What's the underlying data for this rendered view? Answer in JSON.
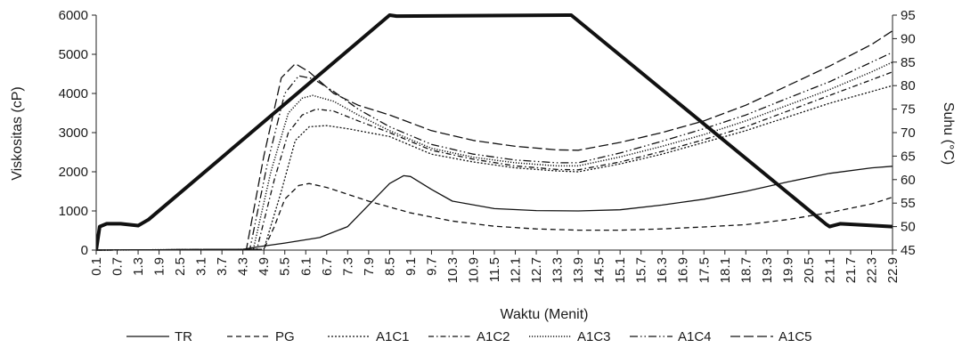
{
  "chart_data": {
    "type": "line",
    "xlabel": "Waktu (Menit)",
    "ylabel": "Viskositas (cP)",
    "y2label": "Suhu (°C)",
    "ylim": [
      0,
      6000
    ],
    "y2lim": [
      45,
      95
    ],
    "yticks": [
      "0",
      "1000",
      "2000",
      "3000",
      "4000",
      "5000",
      "6000"
    ],
    "y2ticks": [
      "45",
      "50",
      "55",
      "60",
      "65",
      "70",
      "75",
      "80",
      "85",
      "90",
      "95"
    ],
    "xticks": [
      "0.1",
      "0.7",
      "1.3",
      "1.9",
      "2.5",
      "3.1",
      "3.7",
      "4.3",
      "4.9",
      "5.5",
      "6.1",
      "6.7",
      "7.3",
      "7.9",
      "8.5",
      "9.1",
      "9.7",
      "10.3",
      "10.9",
      "11.5",
      "12.1",
      "12.7",
      "13.3",
      "13.9",
      "14.5",
      "15.1",
      "15.7",
      "16.3",
      "16.9",
      "17.5",
      "18.1",
      "18.7",
      "19.3",
      "19.9",
      "20.5",
      "21.1",
      "21.7",
      "22.3",
      "22.9"
    ],
    "xlim": [
      0.1,
      22.9
    ],
    "grid": false,
    "legend_position": "bottom",
    "series": [
      {
        "name": "TR",
        "axis": "left",
        "dash": "solid",
        "width": 1.3,
        "points": [
          [
            0.1,
            0
          ],
          [
            4.3,
            20
          ],
          [
            4.7,
            80
          ],
          [
            5.5,
            180
          ],
          [
            6.5,
            320
          ],
          [
            7.3,
            600
          ],
          [
            7.9,
            1150
          ],
          [
            8.5,
            1700
          ],
          [
            8.9,
            1900
          ],
          [
            9.1,
            1880
          ],
          [
            9.7,
            1550
          ],
          [
            10.3,
            1250
          ],
          [
            11.5,
            1060
          ],
          [
            12.7,
            1010
          ],
          [
            13.9,
            1000
          ],
          [
            15.1,
            1030
          ],
          [
            16.3,
            1150
          ],
          [
            17.5,
            1300
          ],
          [
            18.7,
            1500
          ],
          [
            19.9,
            1740
          ],
          [
            21.1,
            1960
          ],
          [
            22.3,
            2100
          ],
          [
            22.9,
            2140
          ]
        ]
      },
      {
        "name": "PG",
        "axis": "left",
        "dash": "6,4",
        "width": 1.3,
        "points": [
          [
            0.1,
            0
          ],
          [
            4.9,
            20
          ],
          [
            5.2,
            600
          ],
          [
            5.5,
            1300
          ],
          [
            5.9,
            1650
          ],
          [
            6.2,
            1700
          ],
          [
            6.7,
            1600
          ],
          [
            7.9,
            1250
          ],
          [
            9.1,
            950
          ],
          [
            10.3,
            740
          ],
          [
            11.5,
            610
          ],
          [
            12.7,
            540
          ],
          [
            13.9,
            510
          ],
          [
            15.1,
            510
          ],
          [
            16.3,
            540
          ],
          [
            17.5,
            590
          ],
          [
            18.7,
            650
          ],
          [
            19.9,
            780
          ],
          [
            21.1,
            960
          ],
          [
            22.3,
            1180
          ],
          [
            22.9,
            1350
          ]
        ]
      },
      {
        "name": "A1C1",
        "axis": "left",
        "dash": "2,2",
        "width": 1.3,
        "points": [
          [
            0.1,
            0
          ],
          [
            4.9,
            20
          ],
          [
            5.4,
            1500
          ],
          [
            5.8,
            2800
          ],
          [
            6.2,
            3150
          ],
          [
            6.7,
            3180
          ],
          [
            7.3,
            3100
          ],
          [
            8.5,
            2900
          ],
          [
            9.7,
            2450
          ],
          [
            10.9,
            2250
          ],
          [
            12.1,
            2100
          ],
          [
            13.3,
            2020
          ],
          [
            13.9,
            2000
          ],
          [
            15.1,
            2200
          ],
          [
            16.3,
            2450
          ],
          [
            17.5,
            2750
          ],
          [
            18.7,
            3050
          ],
          [
            19.9,
            3400
          ],
          [
            21.1,
            3750
          ],
          [
            22.3,
            4050
          ],
          [
            22.9,
            4200
          ]
        ]
      },
      {
        "name": "A1C2",
        "axis": "left",
        "dash": "6,3,1.5,3",
        "width": 1.3,
        "points": [
          [
            0.1,
            0
          ],
          [
            4.7,
            20
          ],
          [
            5.2,
            1800
          ],
          [
            5.6,
            3000
          ],
          [
            6.0,
            3450
          ],
          [
            6.4,
            3600
          ],
          [
            6.9,
            3550
          ],
          [
            7.6,
            3300
          ],
          [
            8.5,
            3000
          ],
          [
            9.7,
            2550
          ],
          [
            10.9,
            2320
          ],
          [
            12.1,
            2150
          ],
          [
            13.3,
            2060
          ],
          [
            13.9,
            2050
          ],
          [
            15.1,
            2250
          ],
          [
            16.3,
            2520
          ],
          [
            17.5,
            2820
          ],
          [
            18.7,
            3150
          ],
          [
            19.9,
            3550
          ],
          [
            21.1,
            3950
          ],
          [
            22.3,
            4350
          ],
          [
            22.9,
            4550
          ]
        ]
      },
      {
        "name": "A1C3",
        "axis": "left",
        "dash": "1.2,1.8",
        "width": 1.5,
        "points": [
          [
            0.1,
            0
          ],
          [
            4.6,
            20
          ],
          [
            5.1,
            2000
          ],
          [
            5.6,
            3500
          ],
          [
            6.0,
            3880
          ],
          [
            6.3,
            3950
          ],
          [
            6.9,
            3800
          ],
          [
            7.6,
            3450
          ],
          [
            8.5,
            3050
          ],
          [
            9.7,
            2600
          ],
          [
            10.9,
            2370
          ],
          [
            12.1,
            2230
          ],
          [
            13.3,
            2150
          ],
          [
            13.9,
            2150
          ],
          [
            15.1,
            2380
          ],
          [
            16.3,
            2650
          ],
          [
            17.5,
            2950
          ],
          [
            18.7,
            3300
          ],
          [
            19.9,
            3700
          ],
          [
            21.1,
            4100
          ],
          [
            22.3,
            4550
          ],
          [
            22.9,
            4800
          ]
        ]
      },
      {
        "name": "A1C4",
        "axis": "left",
        "dash": "9,3,1.5,3,1.5,3",
        "width": 1.3,
        "points": [
          [
            0.1,
            0
          ],
          [
            4.5,
            20
          ],
          [
            5.0,
            2200
          ],
          [
            5.5,
            4000
          ],
          [
            5.9,
            4450
          ],
          [
            6.3,
            4380
          ],
          [
            6.9,
            4050
          ],
          [
            7.6,
            3600
          ],
          [
            8.5,
            3150
          ],
          [
            9.7,
            2700
          ],
          [
            10.9,
            2450
          ],
          [
            12.1,
            2300
          ],
          [
            13.3,
            2230
          ],
          [
            13.9,
            2230
          ],
          [
            15.1,
            2480
          ],
          [
            16.3,
            2780
          ],
          [
            17.5,
            3100
          ],
          [
            18.7,
            3450
          ],
          [
            19.9,
            3880
          ],
          [
            21.1,
            4300
          ],
          [
            22.3,
            4800
          ],
          [
            22.9,
            5050
          ]
        ]
      },
      {
        "name": "A1C5",
        "axis": "left",
        "dash": "11,4",
        "width": 1.3,
        "points": [
          [
            0.1,
            0
          ],
          [
            4.4,
            20
          ],
          [
            4.9,
            2400
          ],
          [
            5.4,
            4400
          ],
          [
            5.8,
            4760
          ],
          [
            6.2,
            4550
          ],
          [
            6.9,
            4000
          ],
          [
            7.6,
            3700
          ],
          [
            8.5,
            3450
          ],
          [
            9.7,
            3050
          ],
          [
            10.9,
            2800
          ],
          [
            12.1,
            2650
          ],
          [
            13.3,
            2560
          ],
          [
            13.9,
            2550
          ],
          [
            15.1,
            2750
          ],
          [
            16.3,
            3000
          ],
          [
            17.5,
            3300
          ],
          [
            18.7,
            3700
          ],
          [
            19.9,
            4200
          ],
          [
            21.1,
            4700
          ],
          [
            22.3,
            5250
          ],
          [
            22.9,
            5600
          ]
        ]
      },
      {
        "axis": "right",
        "dash": "solid",
        "width": 4,
        "points": [
          [
            0.1,
            45
          ],
          [
            0.2,
            50
          ],
          [
            0.4,
            50.6
          ],
          [
            0.8,
            50.6
          ],
          [
            1.3,
            50.2
          ],
          [
            1.6,
            51.5
          ],
          [
            8.5,
            95
          ],
          [
            8.7,
            94.8
          ],
          [
            13.7,
            95
          ],
          [
            21.0,
            50.5
          ],
          [
            21.1,
            50
          ],
          [
            21.4,
            50.6
          ],
          [
            22.9,
            50
          ]
        ]
      }
    ]
  }
}
